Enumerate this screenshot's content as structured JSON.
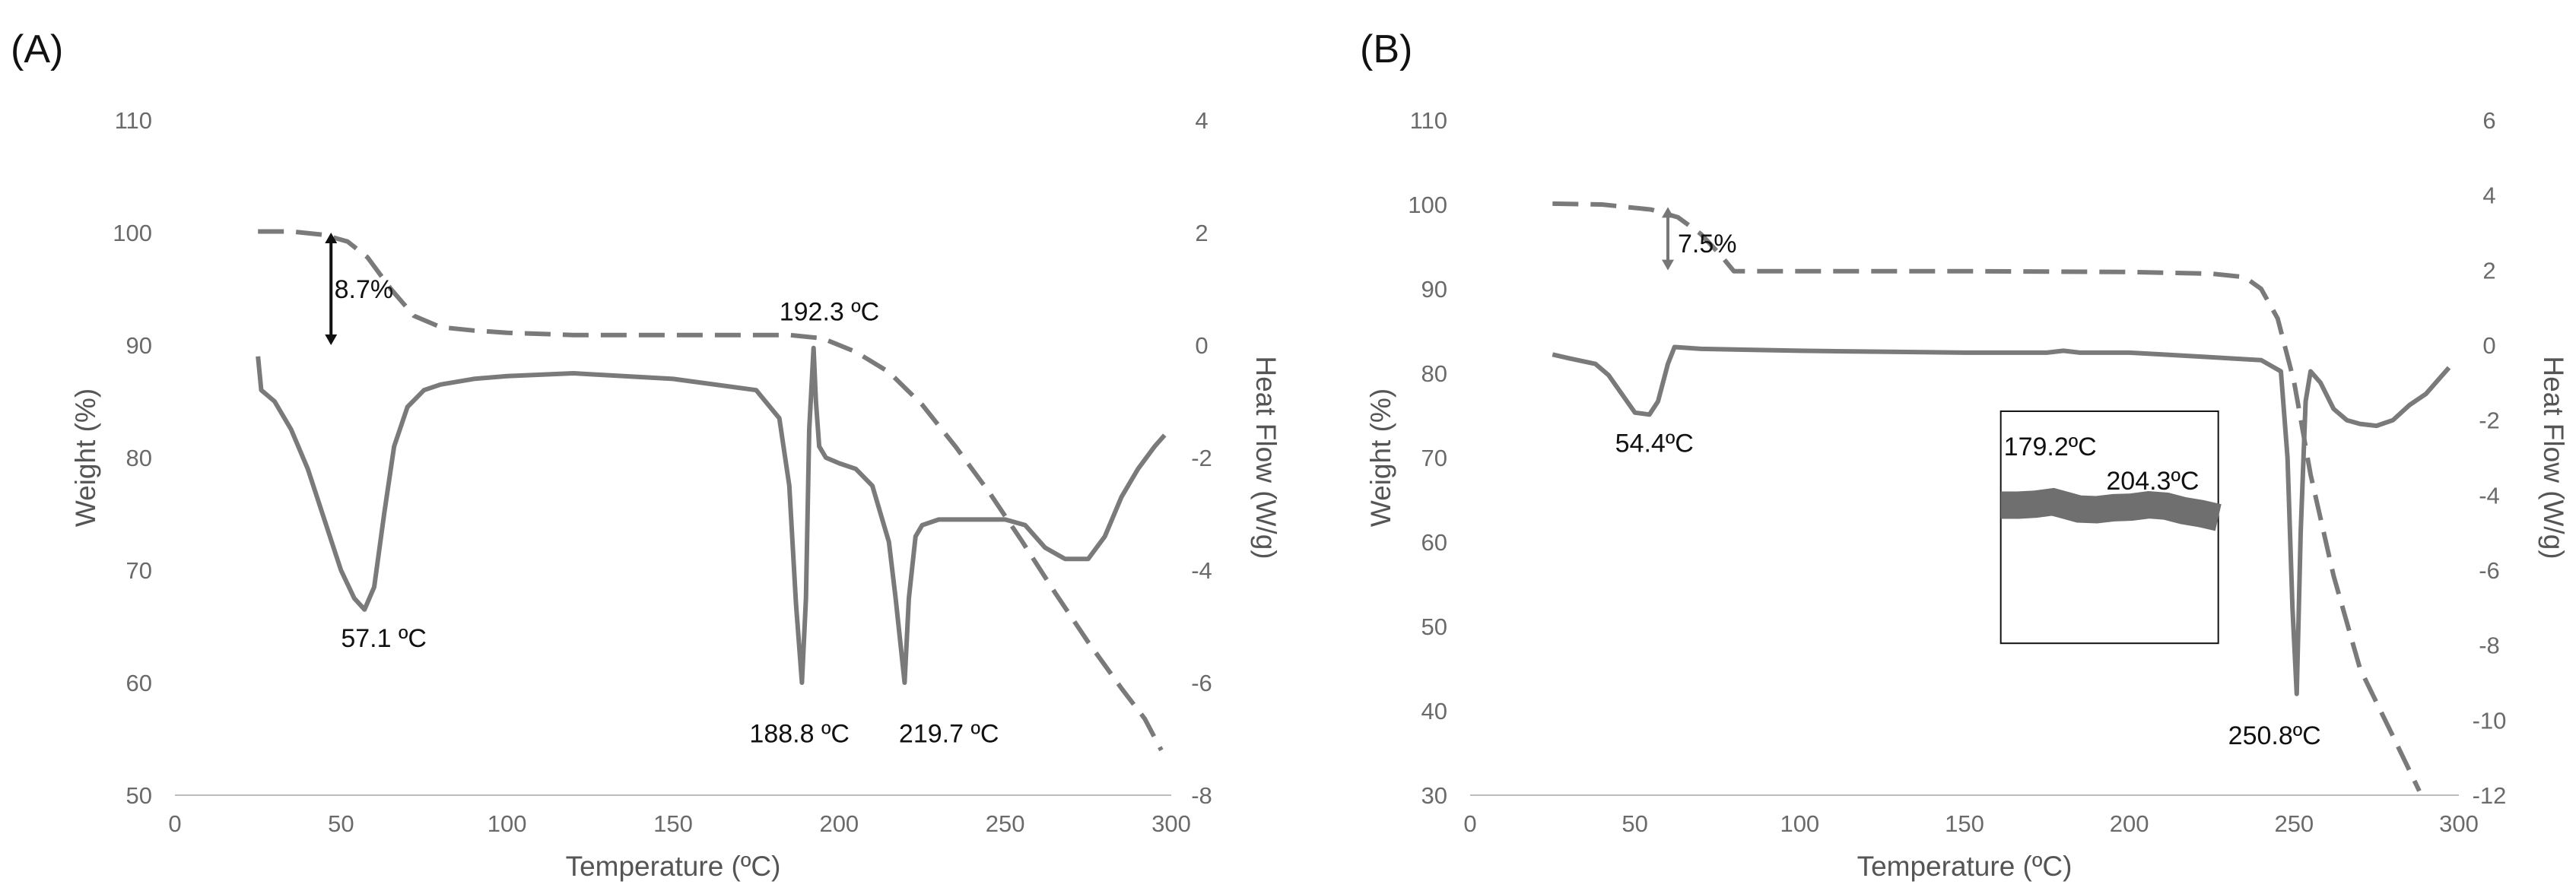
{
  "figure": {
    "panel_a_label": "(A)",
    "panel_b_label": "(B)"
  },
  "chart_data": [
    {
      "type": "line",
      "panel": "A",
      "xlabel": "Temperature (ºC)",
      "ylabel_left": "Weight (%)",
      "ylabel_right": "Heat Flow (W/g)",
      "xlim": [
        0,
        300
      ],
      "ylim_left": [
        50,
        110
      ],
      "ylim_right": [
        -8,
        4
      ],
      "xticks": [
        "0",
        "50",
        "100",
        "150",
        "200",
        "250",
        "300"
      ],
      "yticks_left": [
        "50",
        "60",
        "70",
        "80",
        "90",
        "100",
        "110"
      ],
      "yticks_right": [
        "-8",
        "-6",
        "-4",
        "-2",
        "0",
        "2",
        "4"
      ],
      "grid": false,
      "series": [
        {
          "name": "Weight",
          "axis": "left",
          "style": "dashed",
          "x": [
            25,
            35,
            45,
            52,
            58,
            65,
            72,
            80,
            90,
            100,
            120,
            150,
            185,
            195,
            205,
            215,
            225,
            235,
            245,
            255,
            265,
            275,
            285,
            292,
            297
          ],
          "y": [
            100.1,
            100.1,
            99.8,
            99.2,
            97.8,
            95.0,
            92.6,
            91.6,
            91.3,
            91.1,
            90.9,
            90.9,
            90.9,
            90.6,
            89.4,
            87.6,
            84.7,
            81.0,
            77.0,
            72.6,
            68.0,
            63.6,
            59.5,
            56.8,
            54.0
          ]
        },
        {
          "name": "Heat Flow",
          "axis": "right",
          "style": "solid",
          "x": [
            25,
            26,
            30,
            35,
            40,
            45,
            50,
            54,
            57.1,
            60,
            63,
            66,
            70,
            75,
            80,
            90,
            100,
            120,
            150,
            175,
            182,
            185,
            187,
            188.8,
            190,
            191,
            192.3,
            193,
            194,
            196,
            200,
            205,
            210,
            215,
            217,
            219.7,
            221,
            223,
            225,
            230,
            250,
            256,
            262,
            268,
            275,
            280,
            285,
            290,
            295,
            298
          ],
          "y": [
            -0.2,
            -0.8,
            -1.0,
            -1.5,
            -2.2,
            -3.1,
            -4.0,
            -4.5,
            -4.7,
            -4.3,
            -3.0,
            -1.8,
            -1.1,
            -0.8,
            -0.7,
            -0.6,
            -0.55,
            -0.5,
            -0.6,
            -0.8,
            -1.3,
            -2.5,
            -4.6,
            -6.0,
            -4.5,
            -1.5,
            -0.05,
            -1.0,
            -1.8,
            -2.0,
            -2.1,
            -2.2,
            -2.5,
            -3.5,
            -4.5,
            -6.0,
            -4.5,
            -3.4,
            -3.2,
            -3.1,
            -3.1,
            -3.2,
            -3.6,
            -3.8,
            -3.8,
            -3.4,
            -2.7,
            -2.2,
            -1.8,
            -1.6
          ]
        }
      ],
      "annotations": {
        "mass_loss": "8.7%",
        "peak_1": "57.1 ºC",
        "peak_2": "188.8 ºC",
        "peak_3": "192.3 ºC",
        "peak_4": "219.7 ºC"
      }
    },
    {
      "type": "line",
      "panel": "B",
      "xlabel": "Temperature (ºC)",
      "ylabel_left": "Weight (%)",
      "ylabel_right": "Heat Flow (W/g)",
      "xlim": [
        0,
        300
      ],
      "ylim_left": [
        30,
        110
      ],
      "ylim_right": [
        -12,
        6
      ],
      "xticks": [
        "0",
        "50",
        "100",
        "150",
        "200",
        "250",
        "300"
      ],
      "yticks_left": [
        "30",
        "40",
        "50",
        "60",
        "70",
        "80",
        "90",
        "100",
        "110"
      ],
      "yticks_right": [
        "-12",
        "-10",
        "-8",
        "-6",
        "-4",
        "-2",
        "0",
        "2",
        "4",
        "6"
      ],
      "grid": false,
      "series": [
        {
          "name": "Weight",
          "axis": "left",
          "style": "dashed",
          "x": [
            25,
            40,
            55,
            63,
            70,
            76,
            80,
            85,
            100,
            150,
            200,
            225,
            235,
            240,
            245,
            250,
            255,
            262,
            270,
            280,
            288
          ],
          "y": [
            100.1,
            100.0,
            99.4,
            98.5,
            96.5,
            94.0,
            92.1,
            92.1,
            92.1,
            92.1,
            92.0,
            91.8,
            91.4,
            90.0,
            86.5,
            79.0,
            68.0,
            56.0,
            45.0,
            37.0,
            30.5
          ]
        },
        {
          "name": "Heat Flow",
          "axis": "right",
          "style": "solid",
          "x": [
            25,
            30,
            38,
            42,
            46,
            50,
            54.4,
            57,
            60,
            62,
            70,
            100,
            150,
            175,
            180,
            185,
            200,
            210,
            240,
            246,
            248,
            249.5,
            250.8,
            252,
            253.5,
            255,
            258,
            262,
            266,
            270,
            275,
            280,
            285,
            290,
            294,
            297
          ],
          "y": [
            -0.25,
            -0.35,
            -0.5,
            -0.8,
            -1.3,
            -1.8,
            -1.85,
            -1.5,
            -0.5,
            -0.05,
            -0.1,
            -0.15,
            -0.2,
            -0.2,
            -0.15,
            -0.2,
            -0.2,
            -0.25,
            -0.4,
            -0.7,
            -3.0,
            -7.0,
            -9.3,
            -5.0,
            -1.5,
            -0.7,
            -1.0,
            -1.7,
            -2.0,
            -2.1,
            -2.15,
            -2.0,
            -1.6,
            -1.3,
            -0.9,
            -0.6
          ]
        }
      ],
      "inset": {
        "x": [
          0,
          8,
          16,
          24,
          30,
          36,
          44,
          52,
          60,
          68,
          76,
          84,
          92,
          100
        ],
        "y": [
          0.32,
          0.32,
          0.29,
          0.22,
          0.33,
          0.44,
          0.46,
          0.4,
          0.38,
          0.31,
          0.35,
          0.49,
          0.58,
          0.7
        ]
      },
      "annotations": {
        "mass_loss": "7.5%",
        "peak_1": "54.4ºC",
        "peak_2": "250.8ºC",
        "inset_peak_1": "179.2ºC",
        "inset_peak_2": "204.3ºC"
      }
    }
  ]
}
